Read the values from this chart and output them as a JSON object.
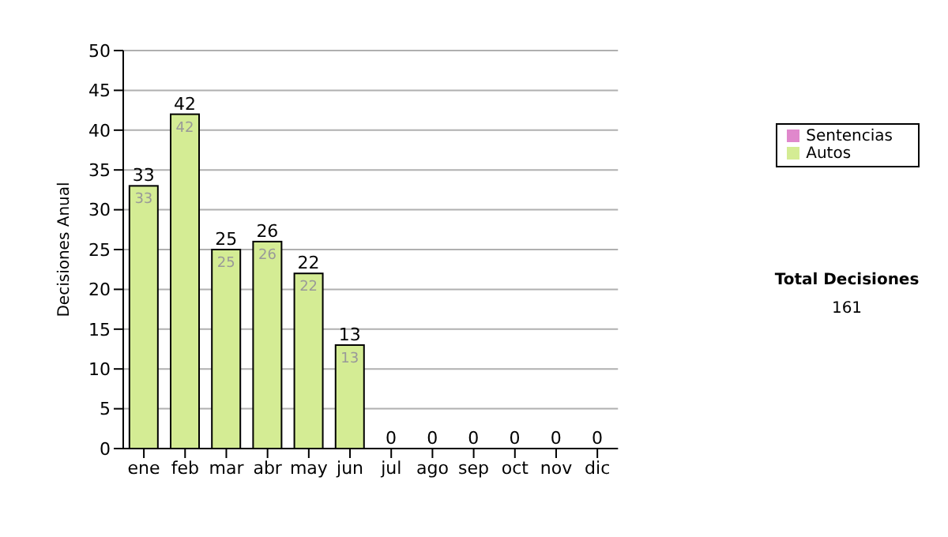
{
  "chart_data": {
    "type": "bar",
    "stacked": true,
    "ylabel": "Decisiones Anual",
    "categories": [
      "ene",
      "feb",
      "mar",
      "abr",
      "may",
      "jun",
      "jul",
      "ago",
      "sep",
      "oct",
      "nov",
      "dic"
    ],
    "series": [
      {
        "name": "Sentencias",
        "color": "#e088cc",
        "values": [
          0,
          0,
          0,
          0,
          0,
          0,
          0,
          0,
          0,
          0,
          0,
          0
        ]
      },
      {
        "name": "Autos",
        "color": "#d4ec94",
        "values": [
          33,
          42,
          25,
          26,
          22,
          13,
          0,
          0,
          0,
          0,
          0,
          0
        ],
        "value_labels": [
          "33",
          "42",
          "25",
          "26",
          "22",
          "13",
          null,
          null,
          null,
          null,
          null,
          null
        ]
      }
    ],
    "totals": [
      "33",
      "42",
      "25",
      "26",
      "22",
      "13",
      "0",
      "0",
      "0",
      "0",
      "0",
      "0"
    ],
    "ylim": [
      0,
      50
    ],
    "yticks": [
      0,
      5,
      10,
      15,
      20,
      25,
      30,
      35,
      40,
      45,
      50
    ],
    "grid": "y",
    "legend": "right",
    "annotations": [
      "Total Decisiones",
      "161"
    ]
  }
}
